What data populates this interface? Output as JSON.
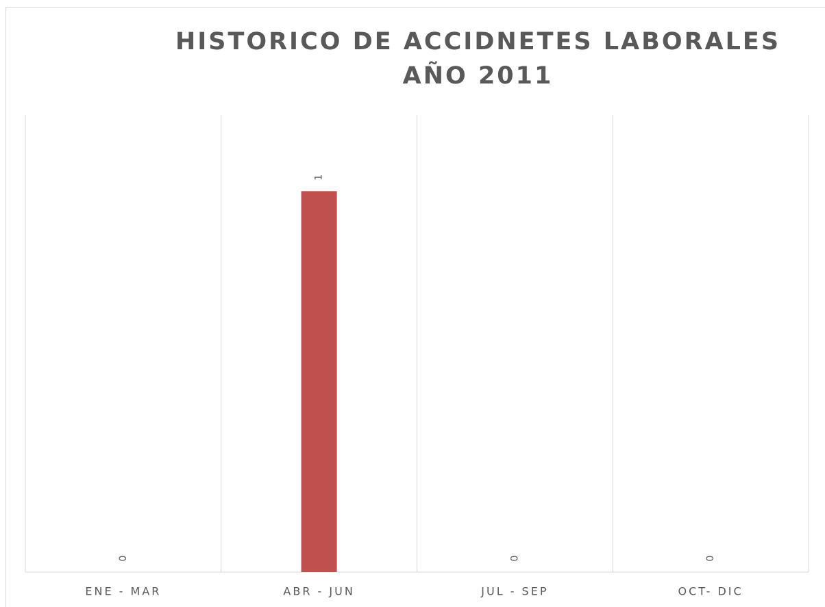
{
  "chart_data": {
    "type": "bar",
    "title": "HISTORICO DE ACCIDNETES LABORALES  AÑO 2011",
    "categories": [
      "ENE - MAR",
      "ABR - JUN",
      "JUL - SEP",
      "OCT- DIC"
    ],
    "values": [
      0,
      1,
      0,
      0
    ],
    "color": "#c0504d",
    "ylim": [
      0,
      1.2
    ]
  }
}
